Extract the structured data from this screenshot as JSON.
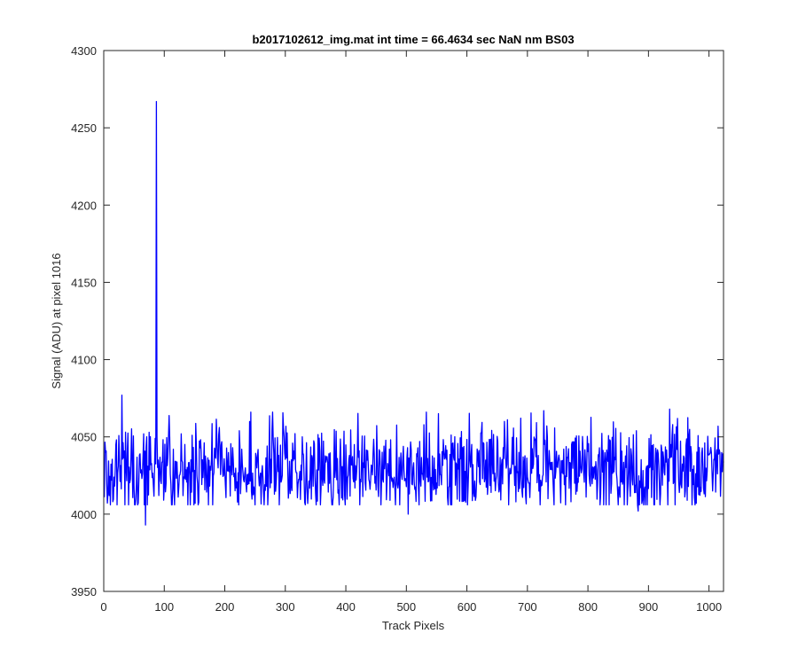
{
  "chart_data": {
    "type": "line",
    "title": "b2017102612_img.mat int time = 66.4634 sec  NaN nm BS03",
    "xlabel": "Track Pixels",
    "ylabel": "Signal (ADU) at pixel 1016",
    "xlim": [
      0,
      1024
    ],
    "ylim": [
      3950,
      4300
    ],
    "xticks": [
      0,
      100,
      200,
      300,
      400,
      500,
      600,
      700,
      800,
      900,
      1000
    ],
    "yticks": [
      3950,
      4000,
      4050,
      4100,
      4150,
      4200,
      4250,
      4300
    ],
    "grid": false,
    "legend": "none",
    "series": [
      {
        "color": "#0000ff",
        "baseline": 4030,
        "noise_amplitude": 14,
        "n_points": 1024,
        "x_start": 1,
        "x_end": 1024,
        "features": [
          {
            "x": 30,
            "y": 4077
          },
          {
            "x": 69,
            "y": 3993
          },
          {
            "x": 87,
            "y": 4267
          },
          {
            "x": 243,
            "y": 4066
          },
          {
            "x": 503,
            "y": 4000
          },
          {
            "x": 727,
            "y": 4067
          },
          {
            "x": 883,
            "y": 4002
          },
          {
            "x": 935,
            "y": 4068
          }
        ]
      }
    ]
  }
}
